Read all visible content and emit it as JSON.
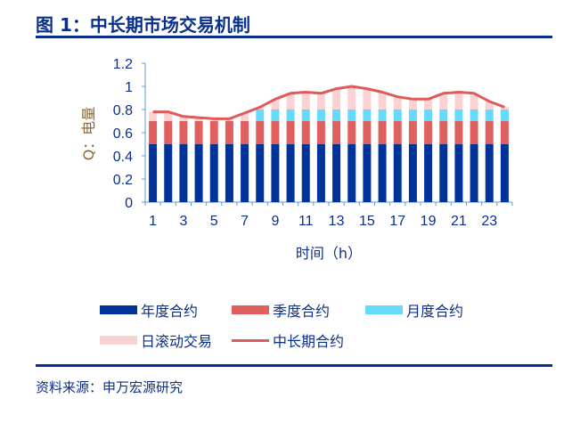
{
  "title": "图 1：中长期市场交易机制",
  "source": "资料来源：申万宏源研究",
  "chart_data": {
    "type": "bar",
    "stacked": true,
    "xlabel": "时间（h）",
    "ylabel": "Q：电量",
    "ylim": [
      0,
      1.2
    ],
    "yticks": [
      "0",
      "0.2",
      "0.4",
      "0.6",
      "0.8",
      "1",
      "1.2"
    ],
    "categories": [
      1,
      2,
      3,
      4,
      5,
      6,
      7,
      8,
      9,
      10,
      11,
      12,
      13,
      14,
      15,
      16,
      17,
      18,
      19,
      20,
      21,
      22,
      23,
      24
    ],
    "xtick_labels": [
      "1",
      "3",
      "5",
      "7",
      "9",
      "11",
      "13",
      "15",
      "17",
      "19",
      "21",
      "23"
    ],
    "legend_position": "bottom",
    "series": [
      {
        "name": "年度合约",
        "type": "bar",
        "color": "#003399",
        "values": [
          0.5,
          0.5,
          0.5,
          0.5,
          0.5,
          0.5,
          0.5,
          0.5,
          0.5,
          0.5,
          0.5,
          0.5,
          0.5,
          0.5,
          0.5,
          0.5,
          0.5,
          0.5,
          0.5,
          0.5,
          0.5,
          0.5,
          0.5,
          0.5
        ]
      },
      {
        "name": "季度合约",
        "type": "bar",
        "color": "#e06060",
        "values": [
          0.2,
          0.2,
          0.2,
          0.2,
          0.2,
          0.2,
          0.2,
          0.2,
          0.2,
          0.2,
          0.2,
          0.2,
          0.2,
          0.2,
          0.2,
          0.2,
          0.2,
          0.2,
          0.2,
          0.2,
          0.2,
          0.2,
          0.2,
          0.2
        ]
      },
      {
        "name": "月度合约",
        "type": "bar",
        "color": "#66d9ff",
        "values": [
          0,
          0,
          0,
          0,
          0,
          0,
          0,
          0.1,
          0.1,
          0.1,
          0.1,
          0.1,
          0.1,
          0.1,
          0.1,
          0.1,
          0.1,
          0.1,
          0.1,
          0.1,
          0.1,
          0.1,
          0.1,
          0.1
        ]
      },
      {
        "name": "日滚动交易",
        "type": "bar",
        "color": "#f9d3d3",
        "values": [
          0.08,
          0.08,
          0.04,
          0.03,
          0.02,
          0.02,
          0.07,
          0.02,
          0.09,
          0.14,
          0.15,
          0.14,
          0.18,
          0.2,
          0.18,
          0.15,
          0.11,
          0.09,
          0.09,
          0.14,
          0.15,
          0.14,
          0.07,
          0.02
        ]
      },
      {
        "name": "中长期合约",
        "type": "line",
        "color": "#e05a5a",
        "values": [
          0.78,
          0.78,
          0.74,
          0.73,
          0.72,
          0.72,
          0.77,
          0.82,
          0.89,
          0.94,
          0.95,
          0.94,
          0.98,
          1.0,
          0.98,
          0.95,
          0.91,
          0.89,
          0.89,
          0.94,
          0.95,
          0.94,
          0.87,
          0.82
        ]
      }
    ]
  }
}
